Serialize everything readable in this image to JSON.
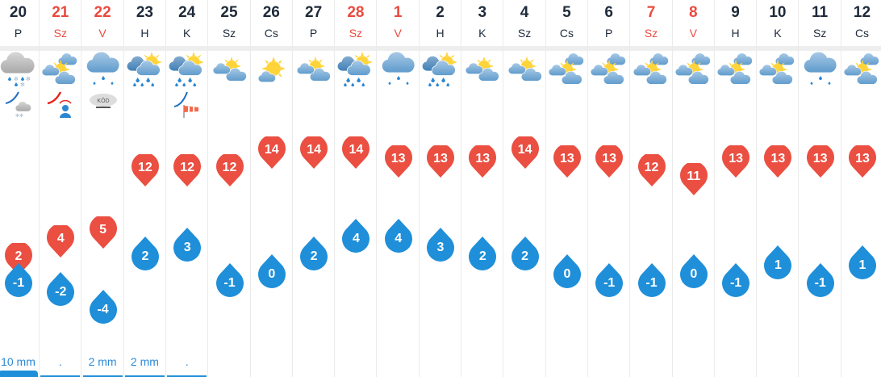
{
  "colors": {
    "max": "#ea4f41",
    "min": "#1f8fd9",
    "weekend": "#ea4a3e",
    "text": "#1e2a3a"
  },
  "days": [
    {
      "date": "20",
      "day": "P",
      "weekend": false,
      "icon": "cloud-rain-snow",
      "warning": "wind-snow",
      "tmax": 2,
      "tmin": -1,
      "precip": "10 mm",
      "bar": "big"
    },
    {
      "date": "21",
      "day": "Sz",
      "weekend": true,
      "icon": "sun-between-clouds",
      "warning": "wind-person",
      "tmax": 4,
      "tmin": -2,
      "precip": ".",
      "bar": "thin"
    },
    {
      "date": "22",
      "day": "V",
      "weekend": true,
      "icon": "cloud-light-rain",
      "warning": "fog",
      "warning_text": "KÖD",
      "tmax": 5,
      "tmin": -4,
      "precip": "2 mm",
      "bar": "thin"
    },
    {
      "date": "23",
      "day": "H",
      "weekend": false,
      "icon": "partly-cloudy-rain",
      "warning": "",
      "tmax": 12,
      "tmin": 2,
      "precip": "2 mm",
      "bar": "thin"
    },
    {
      "date": "24",
      "day": "K",
      "weekend": false,
      "icon": "partly-cloudy-rain",
      "warning": "wind-sock",
      "tmax": 12,
      "tmin": 3,
      "precip": ".",
      "bar": "thin"
    },
    {
      "date": "25",
      "day": "Sz",
      "weekend": false,
      "icon": "sun-cloud",
      "warning": "",
      "tmax": 12,
      "tmin": -1,
      "precip": "",
      "bar": ""
    },
    {
      "date": "26",
      "day": "Cs",
      "weekend": false,
      "icon": "sunny",
      "warning": "",
      "tmax": 14,
      "tmin": 0,
      "precip": "",
      "bar": ""
    },
    {
      "date": "27",
      "day": "P",
      "weekend": false,
      "icon": "sun-cloud",
      "warning": "",
      "tmax": 14,
      "tmin": 2,
      "precip": "",
      "bar": ""
    },
    {
      "date": "28",
      "day": "Sz",
      "weekend": true,
      "icon": "partly-cloudy-rain",
      "warning": "",
      "tmax": 14,
      "tmin": 4,
      "precip": "",
      "bar": ""
    },
    {
      "date": "1",
      "day": "V",
      "weekend": true,
      "icon": "cloud-light-rain",
      "warning": "",
      "tmax": 13,
      "tmin": 4,
      "precip": "",
      "bar": ""
    },
    {
      "date": "2",
      "day": "H",
      "weekend": false,
      "icon": "partly-cloudy-rain",
      "warning": "",
      "tmax": 13,
      "tmin": 3,
      "precip": "",
      "bar": ""
    },
    {
      "date": "3",
      "day": "K",
      "weekend": false,
      "icon": "sun-cloud",
      "warning": "",
      "tmax": 13,
      "tmin": 2,
      "precip": "",
      "bar": ""
    },
    {
      "date": "4",
      "day": "Sz",
      "weekend": false,
      "icon": "sun-cloud",
      "warning": "",
      "tmax": 14,
      "tmin": 2,
      "precip": "",
      "bar": ""
    },
    {
      "date": "5",
      "day": "Cs",
      "weekend": false,
      "icon": "sun-between-clouds",
      "warning": "",
      "tmax": 13,
      "tmin": 0,
      "precip": "",
      "bar": ""
    },
    {
      "date": "6",
      "day": "P",
      "weekend": false,
      "icon": "sun-between-clouds",
      "warning": "",
      "tmax": 13,
      "tmin": -1,
      "precip": "",
      "bar": ""
    },
    {
      "date": "7",
      "day": "Sz",
      "weekend": true,
      "icon": "sun-between-clouds",
      "warning": "",
      "tmax": 12,
      "tmin": -1,
      "precip": "",
      "bar": ""
    },
    {
      "date": "8",
      "day": "V",
      "weekend": true,
      "icon": "sun-between-clouds",
      "warning": "",
      "tmax": 11,
      "tmin": 0,
      "precip": "",
      "bar": ""
    },
    {
      "date": "9",
      "day": "H",
      "weekend": false,
      "icon": "sun-between-clouds",
      "warning": "",
      "tmax": 13,
      "tmin": -1,
      "precip": "",
      "bar": ""
    },
    {
      "date": "10",
      "day": "K",
      "weekend": false,
      "icon": "sun-between-clouds",
      "warning": "",
      "tmax": 13,
      "tmin": 1,
      "precip": "",
      "bar": ""
    },
    {
      "date": "11",
      "day": "Sz",
      "weekend": false,
      "icon": "cloud-light-rain",
      "warning": "",
      "tmax": 13,
      "tmin": -1,
      "precip": "",
      "bar": ""
    },
    {
      "date": "12",
      "day": "Cs",
      "weekend": false,
      "icon": "sun-between-clouds",
      "warning": "",
      "tmax": 13,
      "tmin": 1,
      "precip": "",
      "bar": ""
    }
  ]
}
